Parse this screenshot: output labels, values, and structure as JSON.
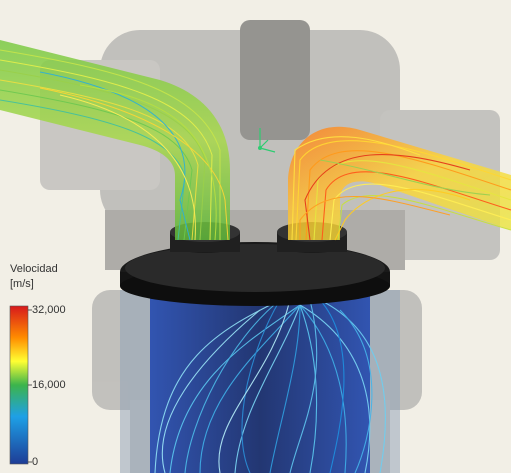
{
  "legend": {
    "title_line1": "Velocidad",
    "title_line2": "[m/s]",
    "ticks": [
      "32,000",
      "16,000",
      "0"
    ],
    "colors": [
      "#d7191c",
      "#ff8c00",
      "#ffff33",
      "#3cb44b",
      "#1ea0e6",
      "#1e3c96"
    ]
  },
  "colors": {
    "background": "#f2efe6",
    "housing": "#8c8c8c",
    "plate": "#1a1a1a",
    "liner": "#1a2f6e"
  },
  "icons": [
    "axis-triad-icon"
  ]
}
